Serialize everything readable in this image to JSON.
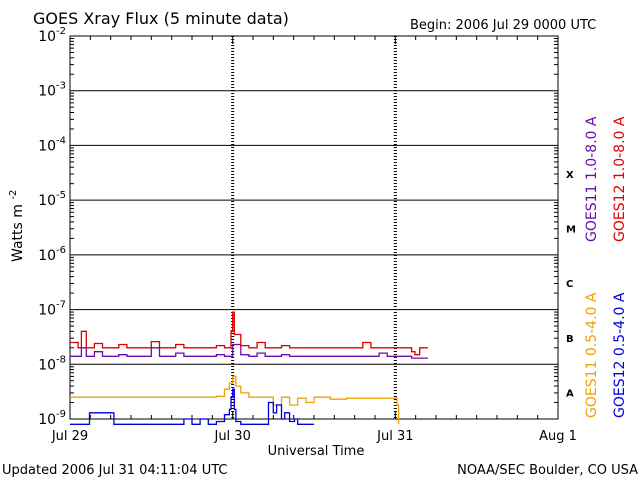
{
  "chart_data": {
    "type": "line",
    "title": "GOES Xray Flux (5 minute data)",
    "begin_label": "Begin:  2006 Jul 29 0000 UTC",
    "ylabel": "Watts m",
    "ylabel_exp": "-2",
    "xlabel": "Universal Time",
    "yscale": "log",
    "ylim_exp": [
      -9,
      -2
    ],
    "x_ticks": [
      "Jul 29",
      "Jul 30",
      "Jul 31",
      "Aug 1"
    ],
    "y_ticks": [
      {
        "base": "10",
        "exp": "-2"
      },
      {
        "base": "10",
        "exp": "-3"
      },
      {
        "base": "10",
        "exp": "-4"
      },
      {
        "base": "10",
        "exp": "-5"
      },
      {
        "base": "10",
        "exp": "-6"
      },
      {
        "base": "10",
        "exp": "-7"
      },
      {
        "base": "10",
        "exp": "-8"
      },
      {
        "base": "10",
        "exp": "-9"
      }
    ],
    "flare_classes": [
      "X",
      "M",
      "C",
      "B",
      "A"
    ],
    "series": [
      {
        "name": "GOES11 1.0-8.0 A",
        "color": "#6a0dad",
        "x": [
          0.0,
          0.05,
          0.07,
          0.1,
          0.15,
          0.2,
          0.25,
          0.3,
          0.35,
          0.4,
          0.45,
          0.5,
          0.55,
          0.6,
          0.65,
          0.7,
          0.75,
          0.8,
          0.85,
          0.9,
          0.95,
          1.0,
          1.05,
          1.1,
          1.15,
          1.2,
          1.25,
          1.3,
          1.35,
          1.4,
          1.45,
          1.5,
          1.55,
          1.6,
          1.65,
          1.7,
          1.75,
          1.8,
          1.85,
          1.9,
          1.95,
          2.0,
          2.05,
          2.1,
          2.15,
          2.2
        ],
        "values": [
          1.4e-08,
          1.4e-08,
          2e-08,
          1.4e-08,
          1.7e-08,
          1.4e-08,
          1.4e-08,
          1.5e-08,
          1.4e-08,
          1.4e-08,
          1.4e-08,
          2e-08,
          1.4e-08,
          1.4e-08,
          1.6e-08,
          1.4e-08,
          1.4e-08,
          1.4e-08,
          1.4e-08,
          1.5e-08,
          1.4e-08,
          2.3e-08,
          1.5e-08,
          1.4e-08,
          1.6e-08,
          1.4e-08,
          1.4e-08,
          1.5e-08,
          1.4e-08,
          1.4e-08,
          1.4e-08,
          1.4e-08,
          1.4e-08,
          1.4e-08,
          1.4e-08,
          1.4e-08,
          1.4e-08,
          1.4e-08,
          1.4e-08,
          1.6e-08,
          1.4e-08,
          1.4e-08,
          1.4e-08,
          1.3e-08,
          1.3e-08,
          1.3e-08
        ]
      },
      {
        "name": "GOES12 1.0-8.0 A",
        "color": "#dd0000",
        "x": [
          0.0,
          0.05,
          0.07,
          0.1,
          0.15,
          0.2,
          0.25,
          0.3,
          0.35,
          0.4,
          0.45,
          0.5,
          0.55,
          0.6,
          0.65,
          0.7,
          0.75,
          0.8,
          0.85,
          0.9,
          0.95,
          0.99,
          1.0,
          1.01,
          1.05,
          1.1,
          1.15,
          1.2,
          1.25,
          1.3,
          1.35,
          1.4,
          1.45,
          1.5,
          1.55,
          1.6,
          1.65,
          1.7,
          1.75,
          1.8,
          1.85,
          1.9,
          1.95,
          2.0,
          2.05,
          2.1,
          2.12,
          2.15,
          2.2
        ],
        "values": [
          2.5e-08,
          2e-08,
          4e-08,
          2e-08,
          2.4e-08,
          2e-08,
          2e-08,
          2.3e-08,
          2e-08,
          2e-08,
          2e-08,
          2.6e-08,
          2e-08,
          2e-08,
          2.3e-08,
          2e-08,
          2e-08,
          2e-08,
          2e-08,
          2.2e-08,
          2e-08,
          4e-08,
          9e-08,
          3.5e-08,
          2.2e-08,
          2e-08,
          2.5e-08,
          2e-08,
          2e-08,
          2.2e-08,
          2e-08,
          2e-08,
          2e-08,
          2e-08,
          2e-08,
          2e-08,
          2e-08,
          2e-08,
          2e-08,
          2.5e-08,
          2e-08,
          2e-08,
          2e-08,
          2e-08,
          2e-08,
          1.7e-08,
          1.5e-08,
          2e-08,
          2e-08
        ]
      },
      {
        "name": "GOES11 0.5-4.0 A",
        "color": "#f0a000",
        "x": [
          0.0,
          0.2,
          0.4,
          0.6,
          0.8,
          0.9,
          0.95,
          0.98,
          1.0,
          1.02,
          1.05,
          1.1,
          1.2,
          1.25,
          1.3,
          1.35,
          1.4,
          1.45,
          1.5,
          1.6,
          1.7,
          1.8,
          1.9,
          2.0,
          2.01,
          2.02
        ],
        "values": [
          2.5e-09,
          2.5e-09,
          2.5e-09,
          2.5e-09,
          2.5e-09,
          2.6e-09,
          3.5e-09,
          4.5e-09,
          6e-09,
          4e-09,
          3e-09,
          2.5e-09,
          2.5e-09,
          1.8e-09,
          2.5e-09,
          1.8e-09,
          2.4e-09,
          2e-09,
          2.5e-09,
          2.3e-09,
          2.4e-09,
          2.4e-09,
          2.4e-09,
          2.4e-09,
          1.8e-09,
          8e-10
        ]
      },
      {
        "name": "GOES12 0.5-4.0 A",
        "color": "#0000dd",
        "x": [
          0.0,
          0.05,
          0.1,
          0.12,
          0.25,
          0.27,
          0.3,
          0.4,
          0.5,
          0.55,
          0.6,
          0.65,
          0.7,
          0.75,
          0.8,
          0.85,
          0.9,
          0.95,
          0.98,
          0.99,
          1.0,
          1.01,
          1.02,
          1.05,
          1.1,
          1.2,
          1.22,
          1.25,
          1.27,
          1.3,
          1.32,
          1.35,
          1.38,
          1.4,
          1.45,
          1.5
        ],
        "values": [
          8e-10,
          8e-10,
          8e-10,
          1.3e-09,
          1.3e-09,
          8e-10,
          8e-10,
          8e-10,
          8e-10,
          8e-10,
          8e-10,
          8e-10,
          1e-09,
          8e-10,
          1e-09,
          8e-10,
          9e-10,
          1.2e-09,
          1.5e-09,
          2.5e-09,
          3.5e-09,
          1.5e-09,
          9e-10,
          8e-10,
          8e-10,
          8e-10,
          2e-09,
          1.3e-09,
          1.8e-09,
          1e-09,
          1.3e-09,
          9e-10,
          1e-09,
          8e-10,
          8e-10,
          8e-10
        ]
      }
    ],
    "updated_label": "Updated 2006 Jul 31 04:11:04 UTC",
    "credit_label": "NOAA/SEC Boulder, CO USA"
  }
}
